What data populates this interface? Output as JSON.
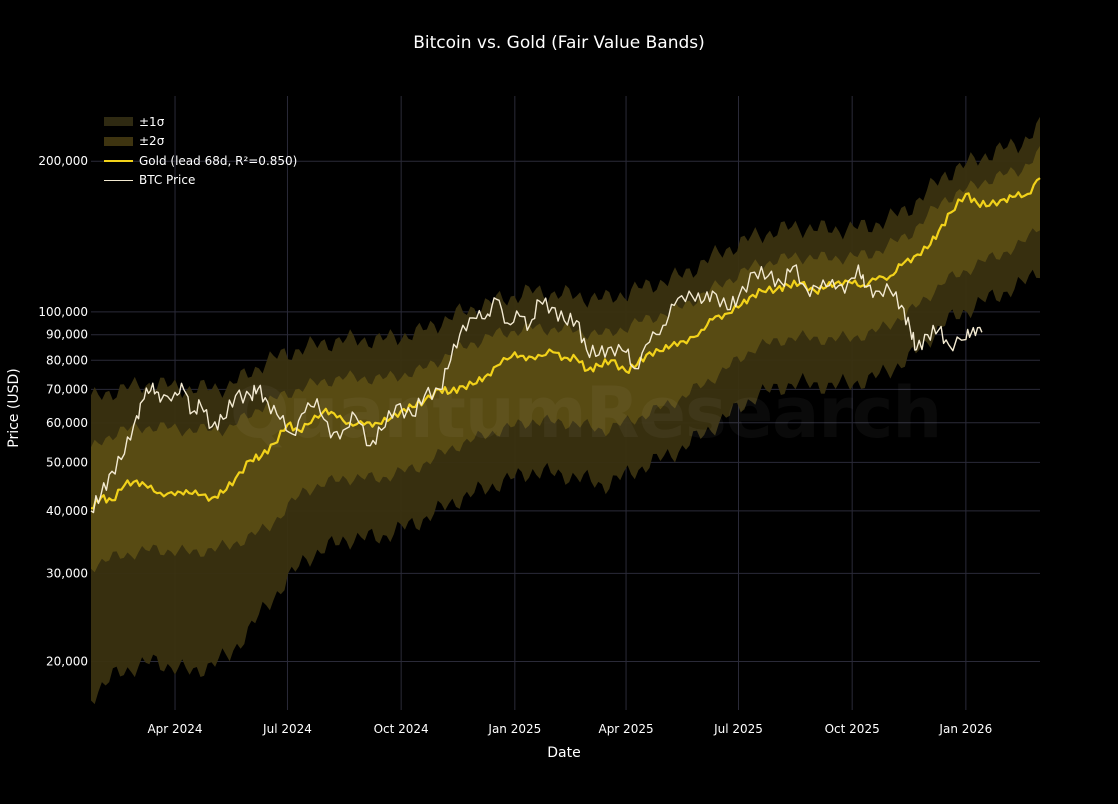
{
  "chart_data": {
    "type": "line",
    "title": "Bitcoin vs. Gold (Fair Value Bands)",
    "xlabel": "Date",
    "ylabel": "Price (USD)",
    "yscale": "log",
    "xlim": [
      "2024-01-24",
      "2026-03-02"
    ],
    "ylim": [
      16000,
      270000
    ],
    "grid": true,
    "legend_position": "top-left",
    "x_ticks": [
      {
        "date": "2024-04-01",
        "label": "Apr 2024"
      },
      {
        "date": "2024-07-01",
        "label": "Jul 2024"
      },
      {
        "date": "2024-10-01",
        "label": "Oct 2024"
      },
      {
        "date": "2025-01-01",
        "label": "Jan 2025"
      },
      {
        "date": "2025-04-01",
        "label": "Apr 2025"
      },
      {
        "date": "2025-07-01",
        "label": "Jul 2025"
      },
      {
        "date": "2025-10-01",
        "label": "Oct 2025"
      },
      {
        "date": "2026-01-01",
        "label": "Jan 2026"
      }
    ],
    "y_ticks": [
      {
        "value": 20000,
        "label": "20,000"
      },
      {
        "value": 30000,
        "label": "30,000"
      },
      {
        "value": 40000,
        "label": "40,000"
      },
      {
        "value": 50000,
        "label": "50,000"
      },
      {
        "value": 60000,
        "label": "60,000"
      },
      {
        "value": 70000,
        "label": "70,000"
      },
      {
        "value": 80000,
        "label": "80,000"
      },
      {
        "value": 90000,
        "label": "90,000"
      },
      {
        "value": 100000,
        "label": "100,000"
      },
      {
        "value": 200000,
        "label": "200,000"
      }
    ],
    "colors": {
      "background": "#000000",
      "gold_line": "#f2d21a",
      "btc_line": "#f3ead2",
      "band_1sigma": "#5c4f14",
      "band_2sigma": "#3a3210",
      "grid": "#2a2a38",
      "legend_1sigma": "#2f2a12",
      "legend_2sigma": "#3e3410"
    },
    "series": [
      {
        "name": "Gold (lead 68d, R²=0.850)",
        "x": [
          "2024-01-24",
          "2024-02-01",
          "2024-02-10",
          "2024-02-20",
          "2024-03-01",
          "2024-03-10",
          "2024-03-20",
          "2024-04-01",
          "2024-04-10",
          "2024-04-20",
          "2024-05-01",
          "2024-05-10",
          "2024-05-20",
          "2024-06-01",
          "2024-06-10",
          "2024-06-20",
          "2024-07-01",
          "2024-07-10",
          "2024-07-20",
          "2024-08-01",
          "2024-08-10",
          "2024-08-20",
          "2024-09-01",
          "2024-09-10",
          "2024-09-20",
          "2024-10-01",
          "2024-10-10",
          "2024-10-20",
          "2024-11-01",
          "2024-11-10",
          "2024-11-20",
          "2024-12-01",
          "2024-12-10",
          "2024-12-20",
          "2025-01-01",
          "2025-01-10",
          "2025-01-20",
          "2025-02-01",
          "2025-02-10",
          "2025-02-20",
          "2025-03-01",
          "2025-03-10",
          "2025-03-20",
          "2025-04-01",
          "2025-04-10",
          "2025-04-20",
          "2025-05-01",
          "2025-05-10",
          "2025-05-20",
          "2025-06-01",
          "2025-06-10",
          "2025-06-20",
          "2025-07-01",
          "2025-07-10",
          "2025-07-20",
          "2025-08-01",
          "2025-08-10",
          "2025-08-20",
          "2025-09-01",
          "2025-09-10",
          "2025-09-20",
          "2025-10-01",
          "2025-10-10",
          "2025-10-20",
          "2025-11-01",
          "2025-11-10",
          "2025-11-20",
          "2025-12-01",
          "2025-12-10",
          "2025-12-20",
          "2026-01-01",
          "2026-01-10",
          "2026-01-20",
          "2026-02-01",
          "2026-02-10",
          "2026-02-20",
          "2026-03-02"
        ],
        "values": [
          40500,
          42500,
          42000,
          45000,
          46000,
          44500,
          43500,
          43000,
          44000,
          43000,
          42500,
          43500,
          46500,
          50500,
          51500,
          54500,
          59500,
          58000,
          60000,
          64000,
          61500,
          60000,
          59500,
          60000,
          60500,
          63500,
          64500,
          66500,
          70000,
          69000,
          71000,
          72000,
          75000,
          78500,
          83000,
          80000,
          82000,
          83000,
          81000,
          80500,
          76500,
          78000,
          80000,
          76000,
          78500,
          83000,
          83500,
          87000,
          86500,
          92000,
          96500,
          99000,
          102000,
          107000,
          110000,
          111000,
          113000,
          114000,
          110000,
          112000,
          115000,
          114000,
          113000,
          116000,
          118000,
          124000,
          129000,
          134000,
          145000,
          158000,
          172000,
          165000,
          163000,
          168000,
          170000,
          172000,
          185000
        ]
      },
      {
        "name": "±1σ",
        "band": "1sigma",
        "x": [
          "2024-01-24",
          "2024-02-15",
          "2024-03-15",
          "2024-04-15",
          "2024-05-15",
          "2024-06-15",
          "2024-07-15",
          "2024-08-15",
          "2024-09-15",
          "2024-10-15",
          "2024-11-15",
          "2024-12-15",
          "2025-01-15",
          "2025-02-15",
          "2025-03-15",
          "2025-04-15",
          "2025-05-15",
          "2025-06-15",
          "2025-07-15",
          "2025-08-15",
          "2025-09-15",
          "2025-10-15",
          "2025-11-15",
          "2025-12-15",
          "2026-01-15",
          "2026-02-15",
          "2026-03-02"
        ],
        "upper": [
          53000,
          58000,
          59000,
          58000,
          58500,
          66000,
          71000,
          74000,
          73500,
          76000,
          84000,
          90000,
          93000,
          92000,
          90000,
          96000,
          102000,
          113000,
          124000,
          129000,
          128000,
          130000,
          142000,
          168000,
          182000,
          193000,
          208000
        ],
        "lower": [
          31000,
          32500,
          33500,
          33000,
          34000,
          37000,
          44000,
          46500,
          46500,
          49000,
          54000,
          57500,
          60500,
          60000,
          58000,
          62000,
          67000,
          75000,
          85000,
          89000,
          88000,
          90000,
          99000,
          115000,
          126000,
          136000,
          150000
        ]
      },
      {
        "name": "±2σ",
        "band": "2sigma",
        "x": [
          "2024-01-24",
          "2024-02-15",
          "2024-03-15",
          "2024-04-15",
          "2024-05-15",
          "2024-06-15",
          "2024-07-15",
          "2024-08-15",
          "2024-09-15",
          "2024-10-15",
          "2024-11-15",
          "2024-12-15",
          "2025-01-15",
          "2025-02-15",
          "2025-03-15",
          "2025-04-15",
          "2025-05-15",
          "2025-06-15",
          "2025-07-15",
          "2025-08-15",
          "2025-09-15",
          "2025-10-15",
          "2025-11-15",
          "2025-12-15",
          "2026-01-15",
          "2026-02-15",
          "2026-03-02"
        ],
        "upper": [
          67000,
          70000,
          72000,
          70000,
          71000,
          80000,
          85000,
          88000,
          88000,
          91000,
          99000,
          105000,
          110000,
          108000,
          106000,
          112000,
          118000,
          131000,
          142000,
          148000,
          146000,
          148000,
          160000,
          188000,
          205000,
          218000,
          235000
        ],
        "lower": [
          17000,
          19000,
          20000,
          19000,
          20500,
          26000,
          32000,
          35000,
          35500,
          38000,
          42000,
          45000,
          48000,
          47000,
          45000,
          49000,
          53000,
          60000,
          68000,
          72000,
          71000,
          73000,
          80000,
          95000,
          105000,
          113000,
          122000
        ]
      },
      {
        "name": "BTC Price",
        "x": [
          "2024-01-24",
          "2024-02-01",
          "2024-02-10",
          "2024-02-20",
          "2024-03-01",
          "2024-03-07",
          "2024-03-14",
          "2024-03-20",
          "2024-04-01",
          "2024-04-08",
          "2024-04-15",
          "2024-04-22",
          "2024-05-01",
          "2024-05-10",
          "2024-05-20",
          "2024-06-01",
          "2024-06-07",
          "2024-06-15",
          "2024-06-25",
          "2024-07-05",
          "2024-07-15",
          "2024-07-25",
          "2024-08-05",
          "2024-08-15",
          "2024-08-25",
          "2024-09-06",
          "2024-09-15",
          "2024-09-27",
          "2024-10-10",
          "2024-10-20",
          "2024-11-01",
          "2024-11-10",
          "2024-11-20",
          "2024-12-01",
          "2024-12-10",
          "2024-12-17",
          "2024-12-26",
          "2025-01-05",
          "2025-01-13",
          "2025-01-21",
          "2025-01-31",
          "2025-02-10",
          "2025-02-20",
          "2025-02-28",
          "2025-03-10",
          "2025-03-20",
          "2025-04-01",
          "2025-04-08",
          "2025-04-20",
          "2025-05-01",
          "2025-05-10",
          "2025-05-22",
          "2025-06-01",
          "2025-06-10",
          "2025-06-22",
          "2025-07-01",
          "2025-07-14",
          "2025-07-25",
          "2025-08-05",
          "2025-08-14",
          "2025-08-25",
          "2025-09-05",
          "2025-09-15",
          "2025-09-25",
          "2025-10-06",
          "2025-10-11",
          "2025-10-20",
          "2025-11-01",
          "2025-11-10",
          "2025-11-17",
          "2025-11-22",
          "2025-12-01",
          "2025-12-10",
          "2025-12-18",
          "2026-01-01",
          "2026-01-07",
          "2026-01-14"
        ],
        "values": [
          40000,
          43000,
          48000,
          52000,
          62000,
          67000,
          72000,
          66000,
          69000,
          70000,
          63000,
          65000,
          59000,
          61000,
          68000,
          68000,
          70000,
          66000,
          61000,
          57000,
          63000,
          67000,
          56000,
          58000,
          62000,
          54000,
          58000,
          65000,
          62000,
          68000,
          70000,
          80000,
          94000,
          97000,
          99000,
          106000,
          95000,
          98000,
          94000,
          105000,
          102000,
          96000,
          96000,
          84000,
          82000,
          85000,
          83000,
          77000,
          87000,
          94000,
          103000,
          110000,
          104000,
          110000,
          101000,
          107000,
          120000,
          118000,
          114000,
          123000,
          111000,
          111000,
          116000,
          109000,
          124000,
          112000,
          110000,
          110000,
          103000,
          92000,
          84000,
          90000,
          92000,
          86000,
          88000,
          93000,
          91000
        ]
      }
    ]
  }
}
